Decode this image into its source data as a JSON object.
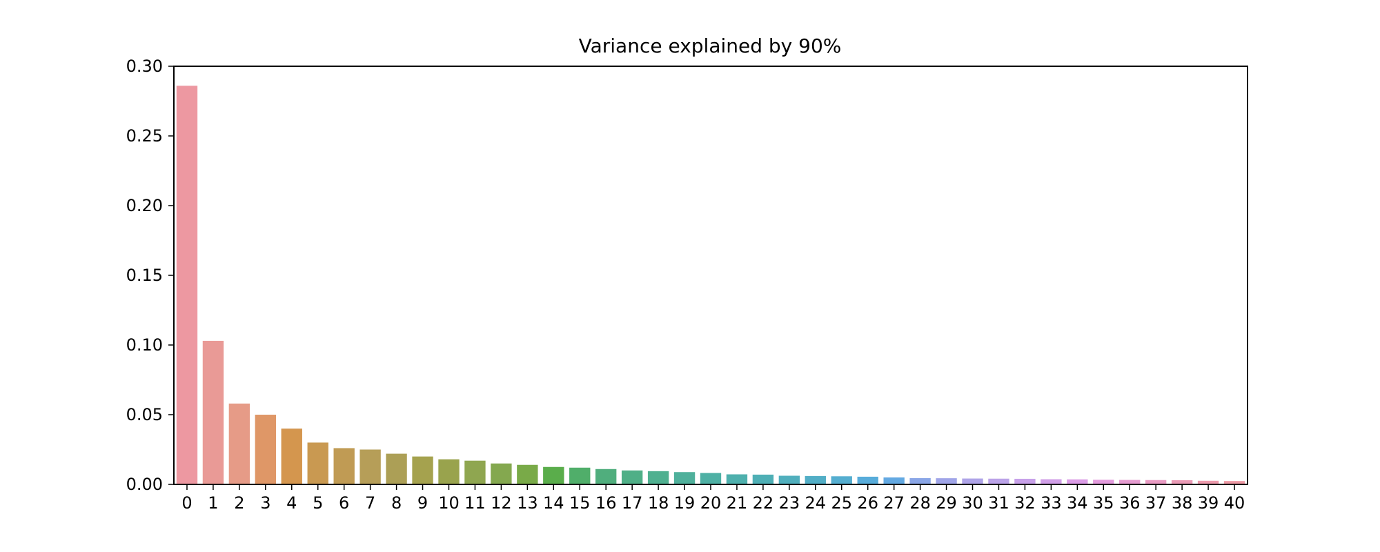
{
  "chart_data": {
    "type": "bar",
    "title": "Variance explained by 90%",
    "xlabel": "",
    "ylabel": "",
    "categories": [
      "0",
      "1",
      "2",
      "3",
      "4",
      "5",
      "6",
      "7",
      "8",
      "9",
      "10",
      "11",
      "12",
      "13",
      "14",
      "15",
      "16",
      "17",
      "18",
      "19",
      "20",
      "21",
      "22",
      "23",
      "24",
      "25",
      "26",
      "27",
      "28",
      "29",
      "30",
      "31",
      "32",
      "33",
      "34",
      "35",
      "36",
      "37",
      "38",
      "39",
      "40"
    ],
    "values": [
      0.286,
      0.103,
      0.058,
      0.05,
      0.04,
      0.03,
      0.026,
      0.025,
      0.022,
      0.02,
      0.018,
      0.017,
      0.015,
      0.014,
      0.0125,
      0.012,
      0.011,
      0.01,
      0.0095,
      0.0088,
      0.0082,
      0.0072,
      0.007,
      0.0062,
      0.006,
      0.0058,
      0.0055,
      0.005,
      0.0045,
      0.0044,
      0.0042,
      0.0041,
      0.004,
      0.0037,
      0.0036,
      0.0033,
      0.0032,
      0.0031,
      0.003,
      0.0026,
      0.0024
    ],
    "ylim": [
      0,
      0.3
    ],
    "yticks": [
      "0.00",
      "0.05",
      "0.10",
      "0.15",
      "0.20",
      "0.25",
      "0.30"
    ],
    "grid": false,
    "legend": "none",
    "colors": [
      "#ed98a1",
      "#e99a96",
      "#e69b87",
      "#df9767",
      "#d4964e",
      "#c99951",
      "#c09b54",
      "#b69e58",
      "#ac9f56",
      "#a5a24e",
      "#99a34d",
      "#8fa650",
      "#84a84f",
      "#79aa48",
      "#5aad4b",
      "#50ae6a",
      "#50ae7d",
      "#4faf87",
      "#4fb090",
      "#4fb09b",
      "#4eb0a4",
      "#4eb0ad",
      "#4eafb5",
      "#50afbd",
      "#52aec6",
      "#55aed0",
      "#58acda",
      "#63a9e2",
      "#8aa6e7",
      "#a0a5e8",
      "#afa4e8",
      "#bba3e8",
      "#c8a1e9",
      "#d19fe8",
      "#db9ce6",
      "#e39bdd",
      "#e59bd0",
      "#e99bc3",
      "#ea9bb6",
      "#ec9aac",
      "#ed99a4"
    ]
  }
}
